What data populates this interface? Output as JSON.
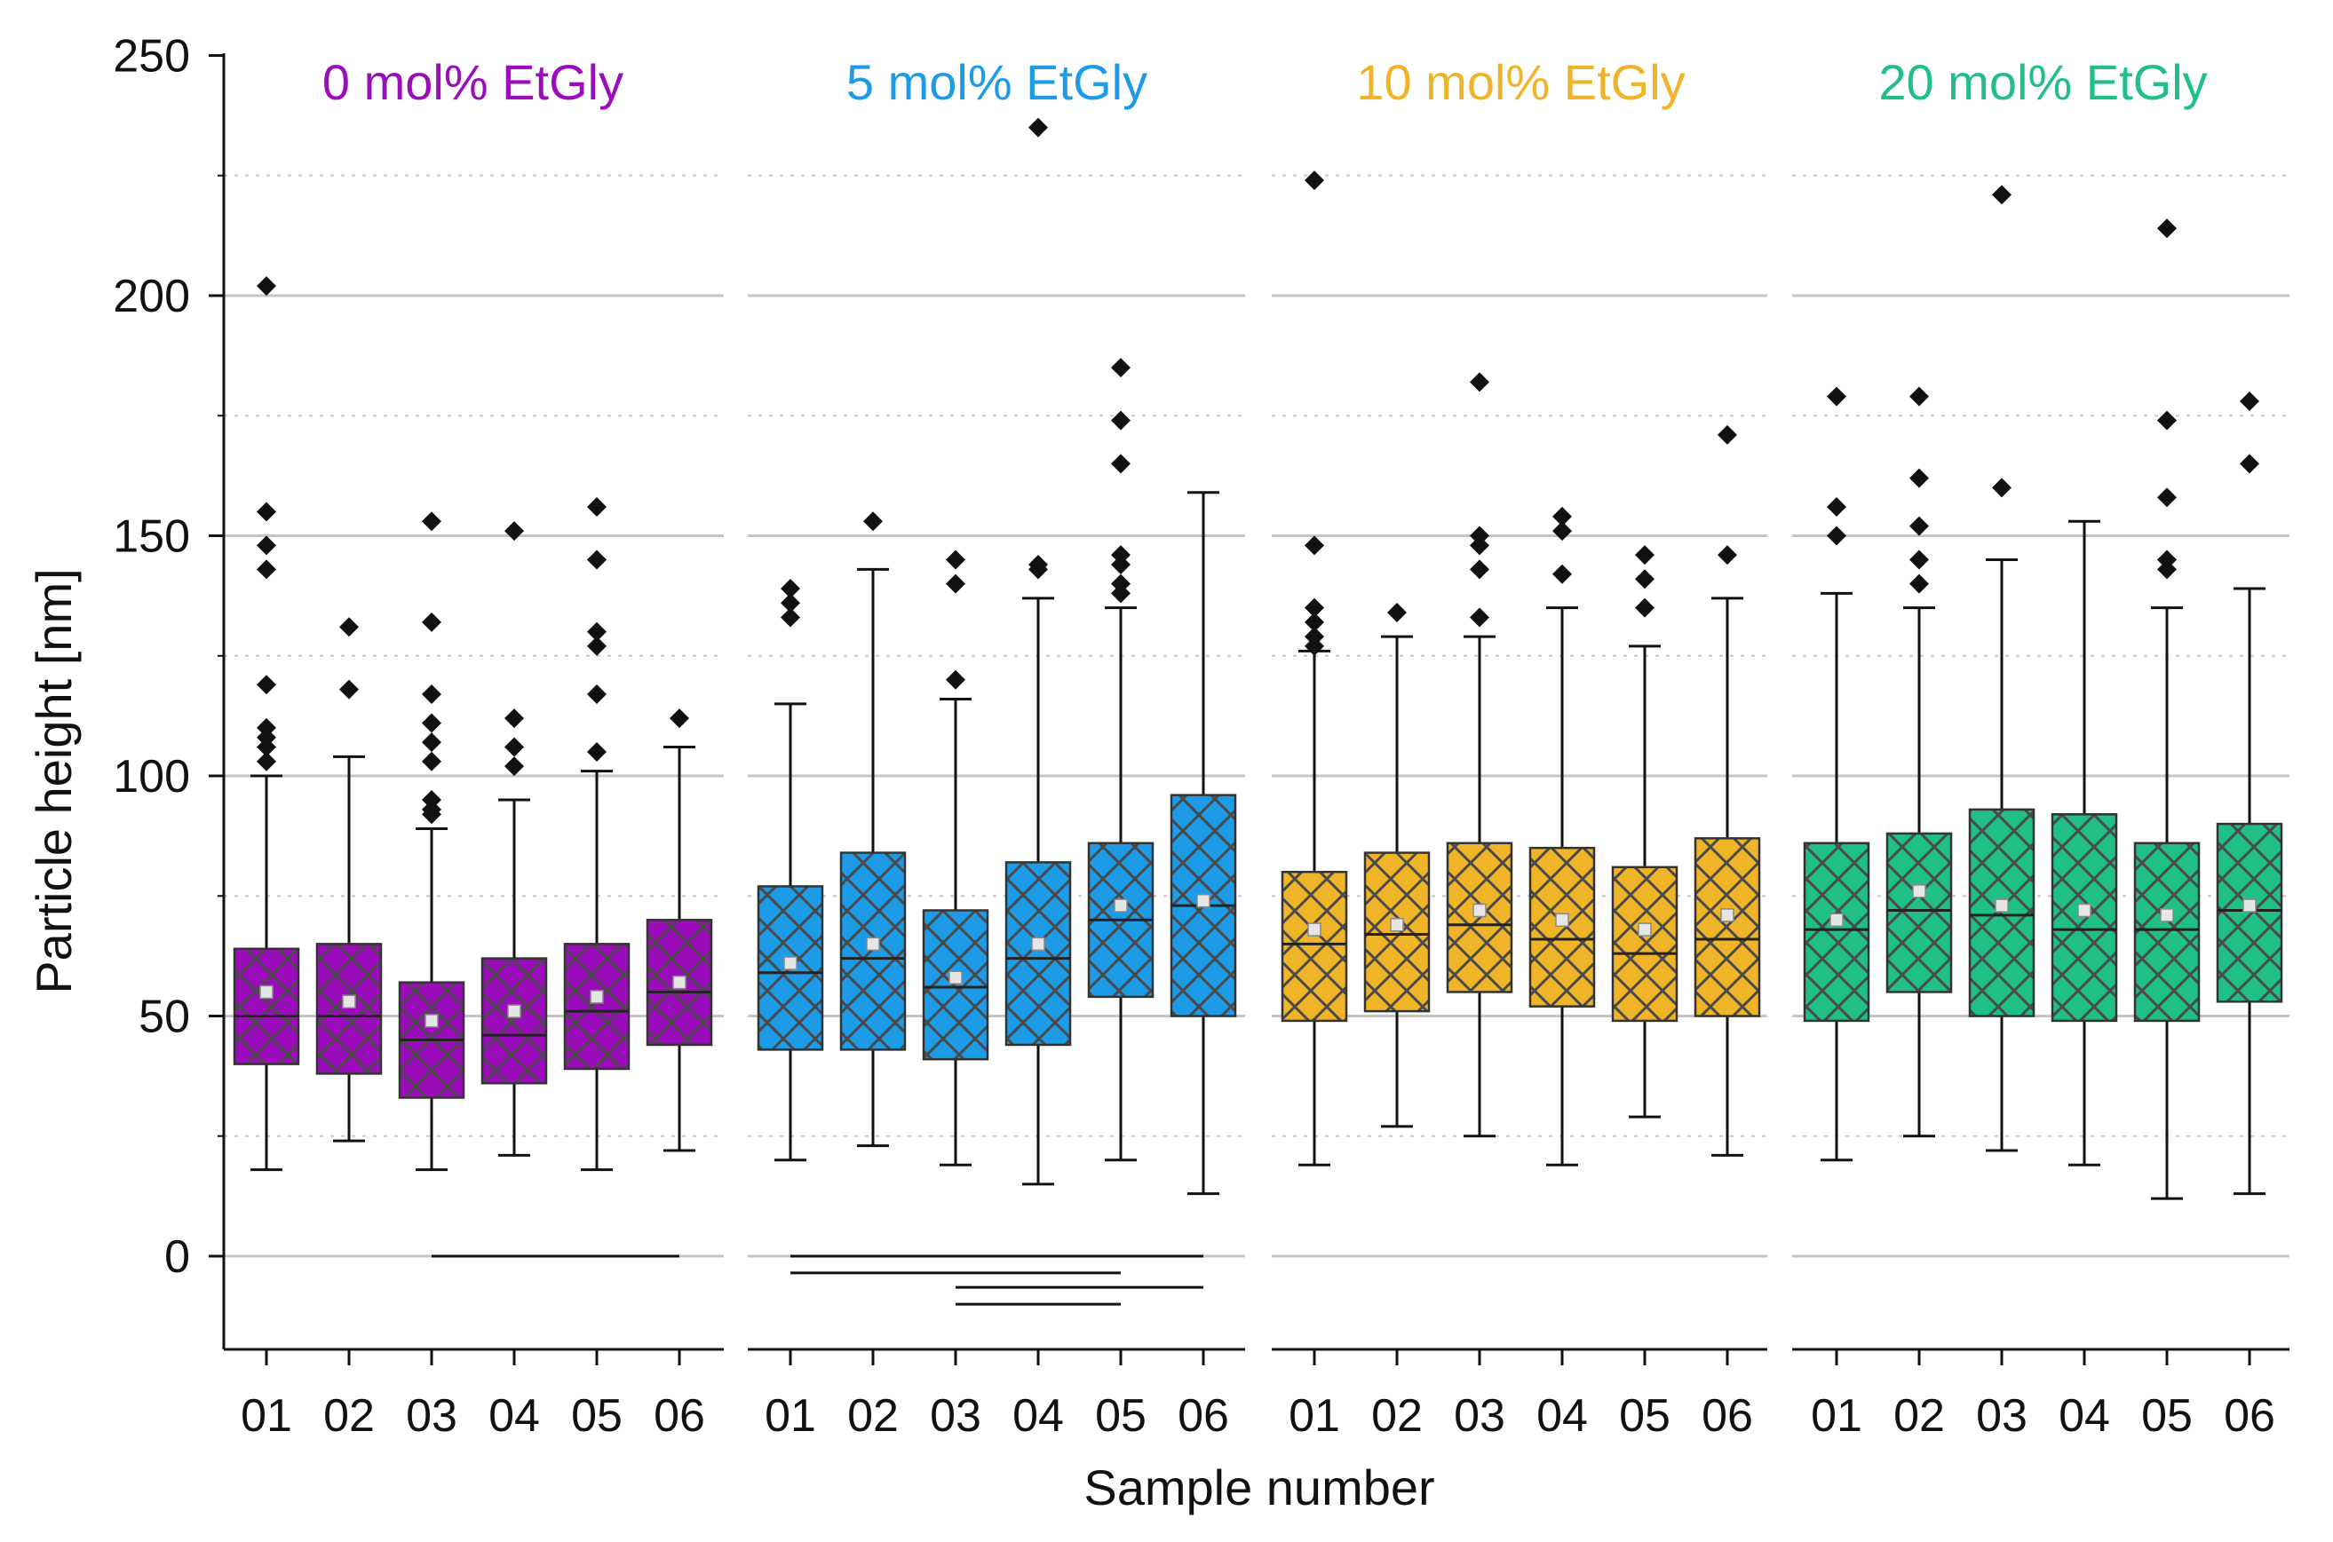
{
  "chart_data": {
    "type": "box",
    "xlabel": "Sample number",
    "ylabel": "Particle height [nm]",
    "ylim": [
      -20,
      250
    ],
    "yticks": [
      0,
      50,
      100,
      150,
      200,
      250
    ],
    "ygrid_minor": [
      25,
      75,
      125,
      175,
      225
    ],
    "grid": true,
    "hatch": "crosshatch",
    "groups": [
      {
        "name": "0 mol% EtGly",
        "color": "#9b0dba",
        "samples": [
          {
            "label": "01",
            "q1": 40,
            "median": 50,
            "q3": 64,
            "mean": 55,
            "whisker_low": 18,
            "whisker_high": 100,
            "outliers": [
              202,
              155,
              148,
              143,
              119,
              110,
              108,
              106,
              103
            ]
          },
          {
            "label": "02",
            "q1": 38,
            "median": 50,
            "q3": 65,
            "mean": 53,
            "whisker_low": 24,
            "whisker_high": 104,
            "outliers": [
              131,
              118
            ]
          },
          {
            "label": "03",
            "q1": 33,
            "median": 45,
            "q3": 57,
            "mean": 49,
            "whisker_low": 18,
            "whisker_high": 89,
            "outliers": [
              153,
              132,
              117,
              111,
              107,
              103,
              95,
              93,
              92
            ]
          },
          {
            "label": "04",
            "q1": 36,
            "median": 46,
            "q3": 62,
            "mean": 51,
            "whisker_low": 21,
            "whisker_high": 95,
            "outliers": [
              151,
              112,
              106,
              102
            ]
          },
          {
            "label": "05",
            "q1": 39,
            "median": 51,
            "q3": 65,
            "mean": 54,
            "whisker_low": 18,
            "whisker_high": 101,
            "outliers": [
              156,
              145,
              130,
              127,
              117,
              105
            ]
          },
          {
            "label": "06",
            "q1": 44,
            "median": 55,
            "q3": 70,
            "mean": 57,
            "whisker_low": 22,
            "whisker_high": 106,
            "outliers": [
              112
            ]
          }
        ],
        "significance_bars": [
          [
            "03",
            "06"
          ]
        ]
      },
      {
        "name": "5 mol% EtGly",
        "color": "#1e9be6",
        "samples": [
          {
            "label": "01",
            "q1": 43,
            "median": 59,
            "q3": 77,
            "mean": 61,
            "whisker_low": 20,
            "whisker_high": 115,
            "outliers": [
              139,
              136,
              133
            ]
          },
          {
            "label": "02",
            "q1": 43,
            "median": 62,
            "q3": 84,
            "mean": 65,
            "whisker_low": 23,
            "whisker_high": 143,
            "outliers": [
              153
            ]
          },
          {
            "label": "03",
            "q1": 41,
            "median": 56,
            "q3": 72,
            "mean": 58,
            "whisker_low": 19,
            "whisker_high": 116,
            "outliers": [
              145,
              140,
              120
            ]
          },
          {
            "label": "04",
            "q1": 44,
            "median": 62,
            "q3": 82,
            "mean": 65,
            "whisker_low": 15,
            "whisker_high": 137,
            "outliers": [
              235,
              144,
              143
            ]
          },
          {
            "label": "05",
            "q1": 54,
            "median": 70,
            "q3": 86,
            "mean": 73,
            "whisker_low": 20,
            "whisker_high": 135,
            "outliers": [
              185,
              174,
              165,
              146,
              144,
              140,
              138
            ]
          },
          {
            "label": "06",
            "q1": 50,
            "median": 73,
            "q3": 96,
            "mean": 74,
            "whisker_low": 13,
            "whisker_high": 159,
            "outliers": []
          }
        ],
        "significance_bars": [
          [
            "01",
            "06"
          ],
          [
            "01",
            "05"
          ],
          [
            "03",
            "06"
          ],
          [
            "03",
            "05"
          ]
        ]
      },
      {
        "name": "10 mol% EtGly",
        "color": "#f0b429",
        "samples": [
          {
            "label": "01",
            "q1": 49,
            "median": 65,
            "q3": 80,
            "mean": 68,
            "whisker_low": 19,
            "whisker_high": 126,
            "outliers": [
              224,
              148,
              135,
              132,
              129,
              127
            ]
          },
          {
            "label": "02",
            "q1": 51,
            "median": 67,
            "q3": 84,
            "mean": 69,
            "whisker_low": 27,
            "whisker_high": 129,
            "outliers": [
              134
            ]
          },
          {
            "label": "03",
            "q1": 55,
            "median": 69,
            "q3": 86,
            "mean": 72,
            "whisker_low": 25,
            "whisker_high": 129,
            "outliers": [
              182,
              150,
              148,
              143,
              133
            ]
          },
          {
            "label": "04",
            "q1": 52,
            "median": 66,
            "q3": 85,
            "mean": 70,
            "whisker_low": 19,
            "whisker_high": 135,
            "outliers": [
              154,
              151,
              142
            ]
          },
          {
            "label": "05",
            "q1": 49,
            "median": 63,
            "q3": 81,
            "mean": 68,
            "whisker_low": 29,
            "whisker_high": 127,
            "outliers": [
              146,
              141,
              135
            ]
          },
          {
            "label": "06",
            "q1": 50,
            "median": 66,
            "q3": 87,
            "mean": 71,
            "whisker_low": 21,
            "whisker_high": 137,
            "outliers": [
              171,
              146
            ]
          }
        ],
        "significance_bars": []
      },
      {
        "name": "20 mol% EtGly",
        "color": "#1fbf85",
        "samples": [
          {
            "label": "01",
            "q1": 49,
            "median": 68,
            "q3": 86,
            "mean": 70,
            "whisker_low": 20,
            "whisker_high": 138,
            "outliers": [
              179,
              156,
              150
            ]
          },
          {
            "label": "02",
            "q1": 55,
            "median": 72,
            "q3": 88,
            "mean": 76,
            "whisker_low": 25,
            "whisker_high": 135,
            "outliers": [
              179,
              162,
              152,
              145,
              140
            ]
          },
          {
            "label": "03",
            "q1": 50,
            "median": 71,
            "q3": 93,
            "mean": 73,
            "whisker_low": 22,
            "whisker_high": 145,
            "outliers": [
              221,
              160
            ]
          },
          {
            "label": "04",
            "q1": 49,
            "median": 68,
            "q3": 92,
            "mean": 72,
            "whisker_low": 19,
            "whisker_high": 153,
            "outliers": []
          },
          {
            "label": "05",
            "q1": 49,
            "median": 68,
            "q3": 86,
            "mean": 71,
            "whisker_low": 12,
            "whisker_high": 135,
            "outliers": [
              214,
              174,
              158,
              145,
              143
            ]
          },
          {
            "label": "06",
            "q1": 53,
            "median": 72,
            "q3": 90,
            "mean": 73,
            "whisker_low": 13,
            "whisker_high": 139,
            "outliers": [
              178,
              165
            ]
          }
        ],
        "significance_bars": []
      }
    ]
  }
}
